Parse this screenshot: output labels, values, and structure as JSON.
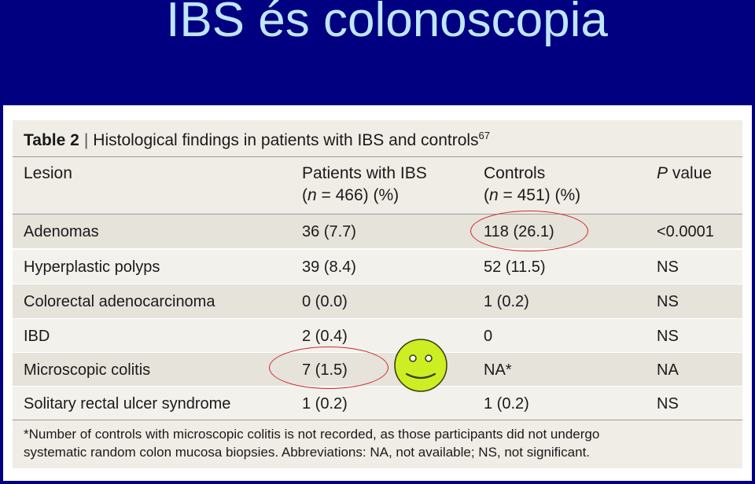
{
  "slide": {
    "title": "IBS és colonoscopia"
  },
  "table": {
    "label": "Table 2",
    "caption": "Histological findings in patients with IBS and controls",
    "ref": "67",
    "headers": {
      "lesion": "Lesion",
      "patients_line1": "Patients with IBS",
      "patients_n": "466",
      "patients_suffix": ") (%)",
      "controls_line1": "Controls",
      "controls_n": "451",
      "controls_suffix": ") (%)",
      "p_label": "value"
    },
    "rows": [
      {
        "lesion": "Adenomas",
        "patients": "36 (7.7)",
        "controls": "118 (26.1)",
        "p": "<0.0001"
      },
      {
        "lesion": "Hyperplastic polyps",
        "patients": "39 (8.4)",
        "controls": "52 (11.5)",
        "p": "NS"
      },
      {
        "lesion": "Colorectal adenocarcinoma",
        "patients": "0 (0.0)",
        "controls": "1 (0.2)",
        "p": "NS"
      },
      {
        "lesion": "IBD",
        "patients": "2 (0.4)",
        "controls": "0",
        "p": "NS"
      },
      {
        "lesion": "Microscopic colitis",
        "patients": "7 (1.5)",
        "controls": "NA*",
        "p": "NA"
      },
      {
        "lesion": "Solitary rectal ulcer syndrome",
        "patients": "1 (0.2)",
        "controls": "1 (0.2)",
        "p": "NS"
      }
    ],
    "footnote_line1": "*Number of controls with microscopic colitis is not recorded, as those participants did not undergo",
    "footnote_line2": "systematic random colon mucosa biopsies. Abbreviations: NA, not available; NS, not significant."
  },
  "annotations": {
    "circle_color": "#cc2a2a",
    "smiley_color": "#ccee22",
    "smiley_icon": "smiley-face-icon"
  }
}
